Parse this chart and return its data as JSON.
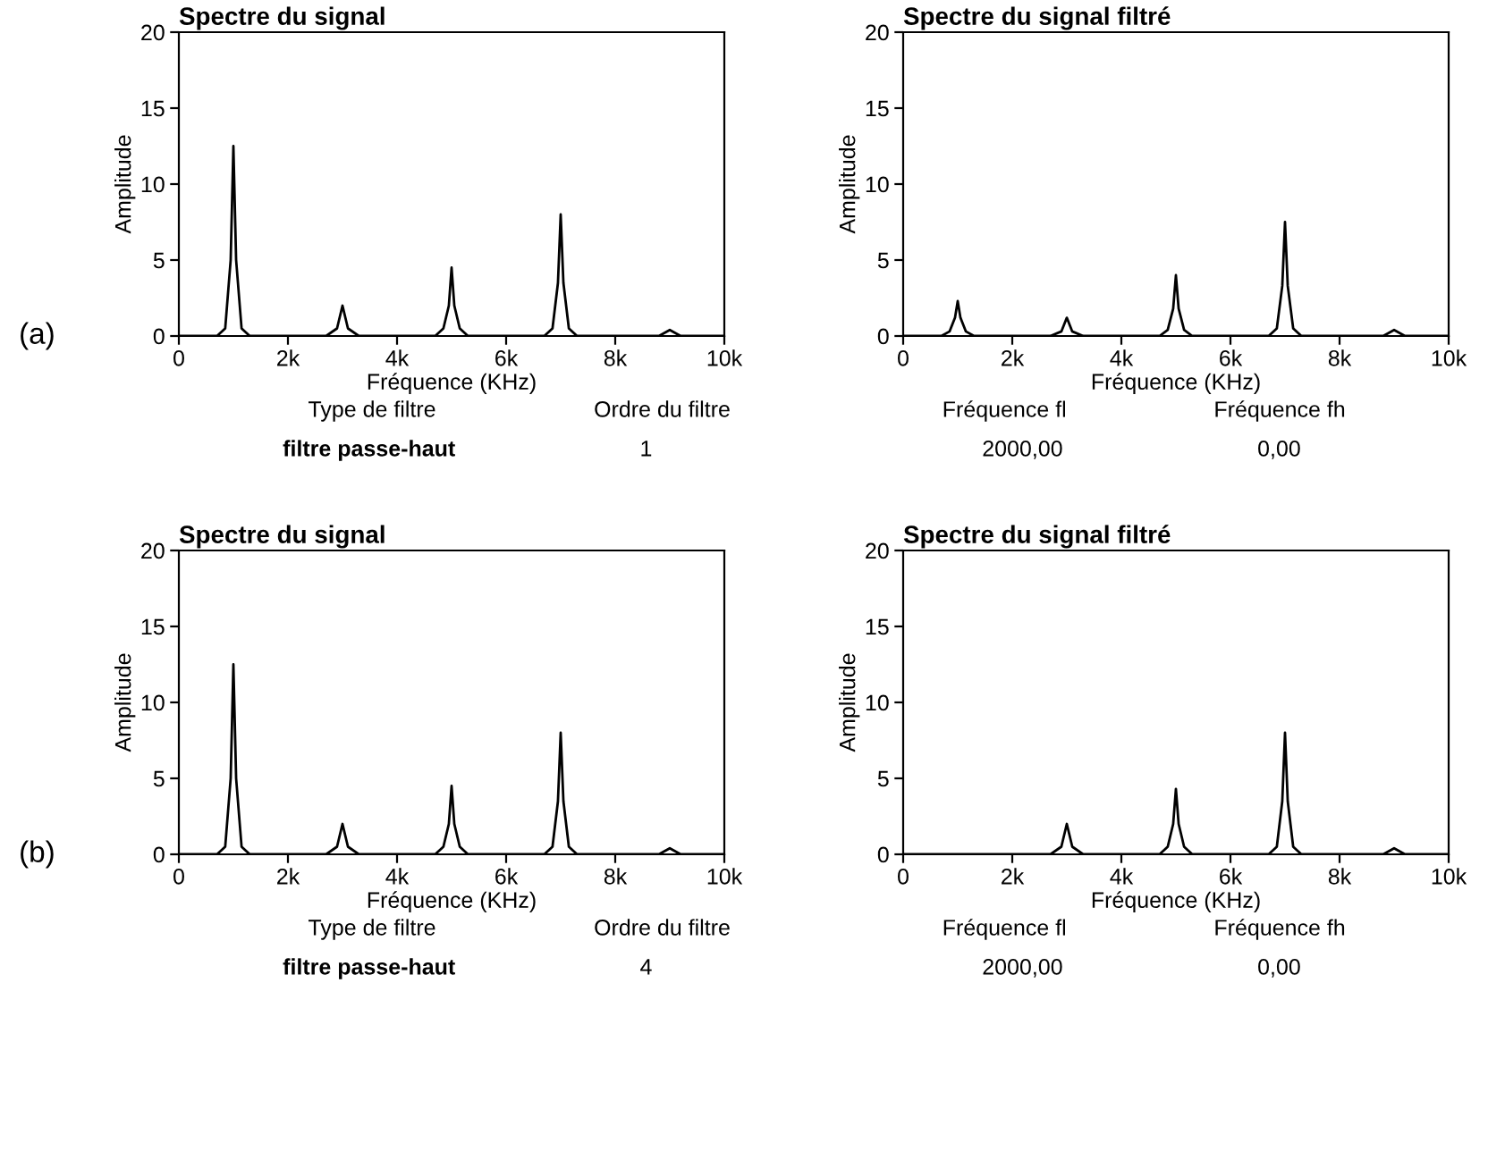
{
  "chart_data": [
    {
      "type": "line",
      "title": "Spectre du signal",
      "xlabel": "Fréquence (KHz)",
      "ylabel": "Amplitude",
      "annotations": [
        "(a)"
      ],
      "x": [
        0,
        700,
        850,
        950,
        1000,
        1050,
        1150,
        1300,
        2700,
        2900,
        3000,
        3100,
        3300,
        4700,
        4850,
        4950,
        5000,
        5050,
        5150,
        5300,
        6700,
        6850,
        6950,
        7000,
        7050,
        7150,
        7300,
        8800,
        9000,
        9200,
        10000
      ],
      "series": [
        {
          "color": "#000000",
          "values": [
            0,
            0,
            0.5,
            5,
            12.5,
            5,
            0.5,
            0,
            0,
            0.5,
            2,
            0.5,
            0,
            0,
            0.5,
            2,
            4.5,
            2,
            0.5,
            0,
            0,
            0.5,
            3.5,
            8,
            3.5,
            0.5,
            0,
            0,
            0.4,
            0,
            0
          ]
        }
      ],
      "xlim": [
        0,
        10000
      ],
      "xticks": [
        0,
        {
          "value": 2000,
          "label": "2k"
        },
        {
          "value": 4000,
          "label": "4k"
        },
        {
          "value": 6000,
          "label": "6k"
        },
        {
          "value": 8000,
          "label": "8k"
        },
        {
          "value": 10000,
          "label": "10k"
        }
      ],
      "ylim": [
        0,
        20
      ],
      "yticks": [
        0,
        5,
        10,
        15,
        20
      ],
      "grid": false
    },
    {
      "type": "line",
      "title": "Spectre du signal filtré",
      "xlabel": "Fréquence (KHz)",
      "ylabel": "Amplitude",
      "x": [
        0,
        700,
        850,
        950,
        1000,
        1050,
        1150,
        1300,
        2700,
        2900,
        3000,
        3100,
        3300,
        4700,
        4850,
        4950,
        5000,
        5050,
        5150,
        5300,
        6700,
        6850,
        6950,
        7000,
        7050,
        7150,
        7300,
        8800,
        9000,
        9200,
        10000
      ],
      "series": [
        {
          "color": "#000000",
          "values": [
            0,
            0,
            0.3,
            1.2,
            2.3,
            1.2,
            0.3,
            0,
            0,
            0.3,
            1.2,
            0.3,
            0,
            0,
            0.4,
            1.8,
            4,
            1.8,
            0.4,
            0,
            0,
            0.5,
            3.3,
            7.5,
            3.3,
            0.5,
            0,
            0,
            0.4,
            0,
            0
          ]
        }
      ],
      "xlim": [
        0,
        10000
      ],
      "xticks": [
        0,
        {
          "value": 2000,
          "label": "2k"
        },
        {
          "value": 4000,
          "label": "4k"
        },
        {
          "value": 6000,
          "label": "6k"
        },
        {
          "value": 8000,
          "label": "8k"
        },
        {
          "value": 10000,
          "label": "10k"
        }
      ],
      "ylim": [
        0,
        20
      ],
      "yticks": [
        0,
        5,
        10,
        15,
        20
      ],
      "grid": false
    },
    {
      "type": "other",
      "annotations": [
        "Type de filtre",
        "filtre passe-haut",
        "Ordre du filtre",
        "1",
        "Fréquence fl",
        "2000,00",
        "Fréquence fh",
        "0,00"
      ]
    },
    {
      "type": "line",
      "title": "Spectre du signal",
      "xlabel": "Fréquence (KHz)",
      "ylabel": "Amplitude",
      "annotations": [
        "(b)"
      ],
      "x": [
        0,
        700,
        850,
        950,
        1000,
        1050,
        1150,
        1300,
        2700,
        2900,
        3000,
        3100,
        3300,
        4700,
        4850,
        4950,
        5000,
        5050,
        5150,
        5300,
        6700,
        6850,
        6950,
        7000,
        7050,
        7150,
        7300,
        8800,
        9000,
        9200,
        10000
      ],
      "series": [
        {
          "color": "#000000",
          "values": [
            0,
            0,
            0.5,
            5,
            12.5,
            5,
            0.5,
            0,
            0,
            0.5,
            2,
            0.5,
            0,
            0,
            0.5,
            2,
            4.5,
            2,
            0.5,
            0,
            0,
            0.5,
            3.5,
            8,
            3.5,
            0.5,
            0,
            0,
            0.4,
            0,
            0
          ]
        }
      ],
      "xlim": [
        0,
        10000
      ],
      "xticks": [
        0,
        {
          "value": 2000,
          "label": "2k"
        },
        {
          "value": 4000,
          "label": "4k"
        },
        {
          "value": 6000,
          "label": "6k"
        },
        {
          "value": 8000,
          "label": "8k"
        },
        {
          "value": 10000,
          "label": "10k"
        }
      ],
      "ylim": [
        0,
        20
      ],
      "yticks": [
        0,
        5,
        10,
        15,
        20
      ],
      "grid": false
    },
    {
      "type": "line",
      "title": "Spectre du signal filtré",
      "xlabel": "Fréquence (KHz)",
      "ylabel": "Amplitude",
      "x": [
        0,
        700,
        850,
        950,
        1000,
        1050,
        1150,
        1300,
        2700,
        2900,
        3000,
        3100,
        3300,
        4700,
        4850,
        4950,
        5000,
        5050,
        5150,
        5300,
        6700,
        6850,
        6950,
        7000,
        7050,
        7150,
        7300,
        8800,
        9000,
        9200,
        10000
      ],
      "series": [
        {
          "color": "#000000",
          "values": [
            0,
            0,
            0,
            0,
            0,
            0,
            0,
            0,
            0,
            0.5,
            2,
            0.5,
            0,
            0,
            0.5,
            2,
            4.3,
            2,
            0.5,
            0,
            0,
            0.5,
            3.5,
            8,
            3.5,
            0.5,
            0,
            0,
            0.4,
            0,
            0
          ]
        }
      ],
      "xlim": [
        0,
        10000
      ],
      "xticks": [
        0,
        {
          "value": 2000,
          "label": "2k"
        },
        {
          "value": 4000,
          "label": "4k"
        },
        {
          "value": 6000,
          "label": "6k"
        },
        {
          "value": 8000,
          "label": "8k"
        },
        {
          "value": 10000,
          "label": "10k"
        }
      ],
      "ylim": [
        0,
        20
      ],
      "yticks": [
        0,
        5,
        10,
        15,
        20
      ],
      "grid": false
    },
    {
      "type": "other",
      "annotations": [
        "Type de filtre",
        "filtre passe-haut",
        "Ordre du filtre",
        "4",
        "Fréquence fl",
        "2000,00",
        "Fréquence fh",
        "0,00"
      ]
    }
  ]
}
